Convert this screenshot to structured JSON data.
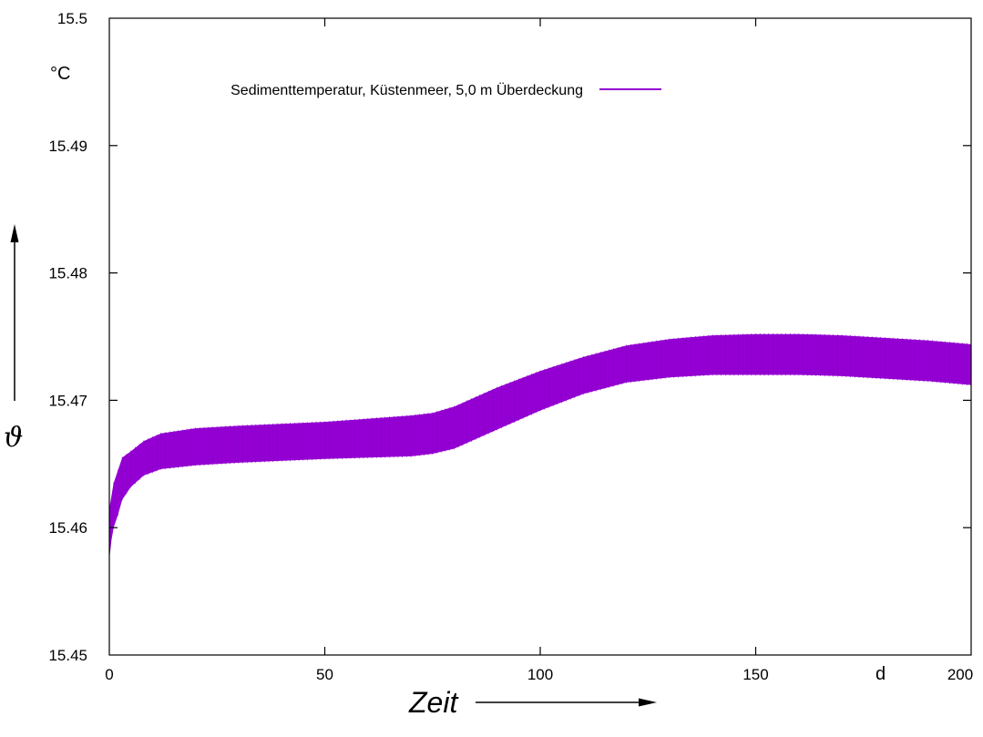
{
  "chart_data": {
    "type": "area",
    "legend": "Sedimenttemperatur, Küstenmeer, 5,0 m Überdeckung",
    "legend_position": "top-left",
    "xlabel": "Zeit",
    "x_unit": "d",
    "ylabel": "ϑ",
    "y_unit": "°C",
    "xlim": [
      0,
      200
    ],
    "ylim": [
      15.45,
      15.5
    ],
    "x_ticks": [
      0,
      50,
      100,
      150,
      200
    ],
    "x_tick_labels": [
      "0",
      "50",
      "100",
      "150",
      "200"
    ],
    "y_ticks": [
      15.45,
      15.46,
      15.47,
      15.48,
      15.49,
      15.5
    ],
    "y_tick_labels": [
      "15.45",
      "15.46",
      "15.47",
      "15.48",
      "15.49",
      "15.5"
    ],
    "grid": false,
    "series_color": "#9400d3",
    "envelope": {
      "x": [
        0,
        0.5,
        1,
        2,
        3,
        5,
        8,
        12,
        20,
        30,
        50,
        70,
        75,
        80,
        90,
        100,
        110,
        120,
        130,
        140,
        150,
        160,
        170,
        180,
        190,
        200
      ],
      "upper": [
        15.4615,
        15.4625,
        15.4635,
        15.4645,
        15.4655,
        15.466,
        15.4668,
        15.4674,
        15.4678,
        15.468,
        15.4683,
        15.4688,
        15.469,
        15.4695,
        15.471,
        15.4723,
        15.4734,
        15.4743,
        15.4748,
        15.4751,
        15.4752,
        15.4752,
        15.4751,
        15.4749,
        15.4747,
        15.4744
      ],
      "lower": [
        15.4575,
        15.459,
        15.46,
        15.461,
        15.4622,
        15.4632,
        15.4641,
        15.4646,
        15.4649,
        15.4651,
        15.4654,
        15.4656,
        15.4658,
        15.4662,
        15.4677,
        15.4692,
        15.4705,
        15.4714,
        15.4718,
        15.472,
        15.472,
        15.472,
        15.4719,
        15.4717,
        15.4715,
        15.4712
      ]
    }
  }
}
